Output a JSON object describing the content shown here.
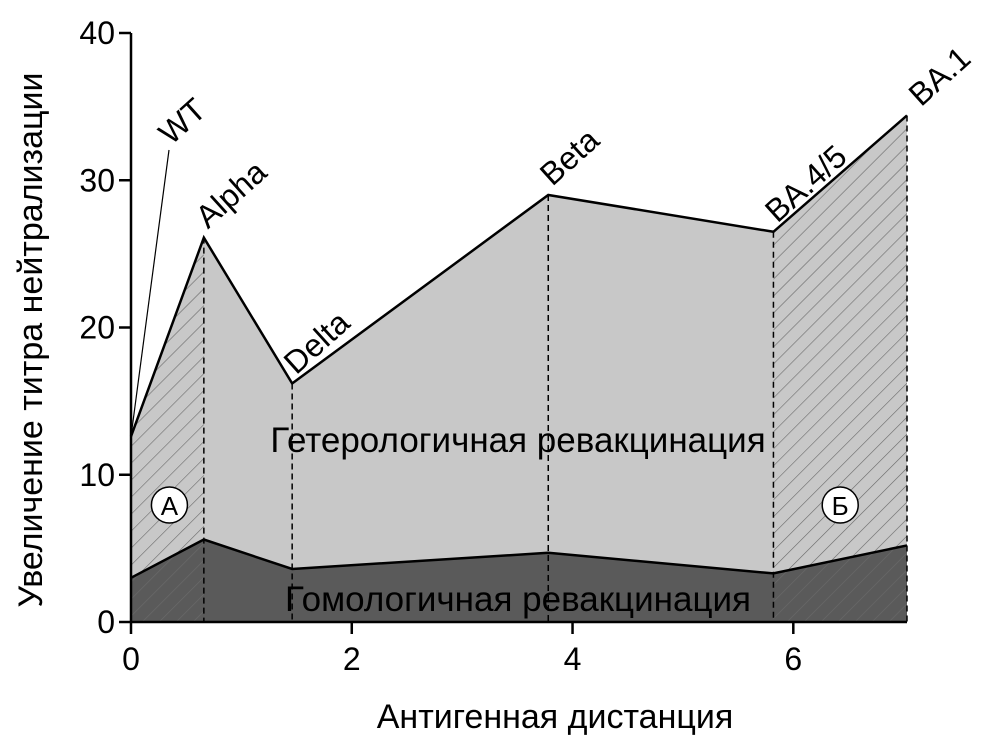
{
  "chart_data": {
    "type": "area",
    "x_label": "Антигенная дистанция",
    "y_label": "Увеличение титра нейтрализации",
    "x": [
      0,
      0.66,
      1.46,
      3.78,
      5.82,
      7.03
    ],
    "point_labels": [
      "WT",
      "Alpha",
      "Delta",
      "Beta",
      "BA.4/5",
      "BA.1"
    ],
    "series": [
      {
        "name": "Гетерологичная ревакцинация",
        "color": "#c8c8c8",
        "values": [
          12.6,
          26.1,
          16.2,
          29.0,
          26.5,
          34.4
        ]
      },
      {
        "name": "Гомологичная ревакцинация",
        "color": "#5a5a5a",
        "values": [
          3.0,
          5.6,
          3.6,
          4.7,
          3.3,
          5.2
        ]
      }
    ],
    "annotations": [
      "А",
      "Б"
    ],
    "xlim": [
      0,
      7.03
    ],
    "xticks": [
      0,
      2,
      4,
      6
    ],
    "ylim": [
      0,
      40
    ],
    "yticks": [
      0,
      10,
      20,
      30,
      40
    ]
  }
}
